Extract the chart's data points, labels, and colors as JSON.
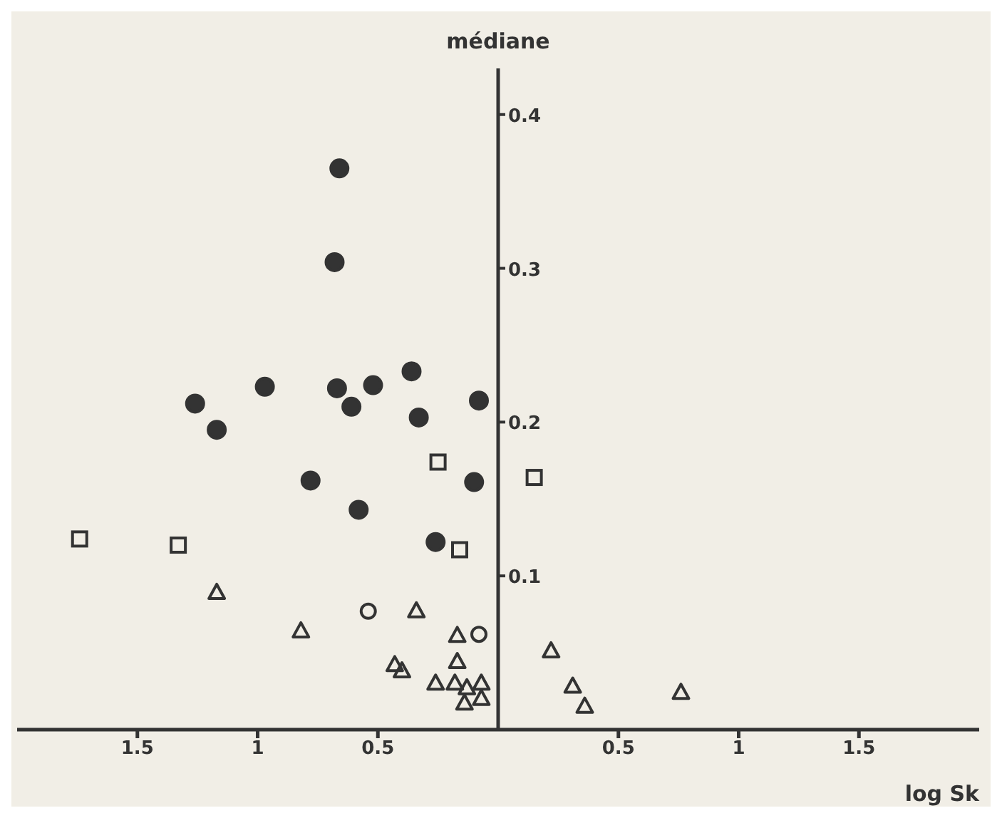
{
  "chart_data": {
    "type": "scatter",
    "xlabel": "log Sk",
    "ylabel": "médiane",
    "xlim": [
      -2,
      2
    ],
    "ylim": [
      0,
      0.43
    ],
    "xticks": [
      {
        "value": -1.5,
        "label": "1.5"
      },
      {
        "value": -1,
        "label": "1"
      },
      {
        "value": -0.5,
        "label": "0.5"
      },
      0.5,
      1,
      {
        "value": 1.5,
        "label": "1.5"
      }
    ],
    "yticks": [
      0.1,
      0.2,
      0.3,
      0.4
    ],
    "grid": false,
    "legend": false,
    "series": [
      {
        "color": "#333333",
        "marker": "circle",
        "x": [
          -0.66,
          -0.68,
          -0.36,
          -0.97,
          -0.67,
          -0.52,
          -1.26,
          -0.61,
          -0.08,
          -0.33,
          -1.17,
          -0.78,
          -0.1,
          -0.58,
          -0.26
        ],
        "values": [
          0.365,
          0.304,
          0.233,
          0.223,
          0.222,
          0.224,
          0.212,
          0.21,
          0.214,
          0.203,
          0.195,
          0.162,
          0.161,
          0.143,
          0.122
        ]
      },
      {
        "color": "#333333",
        "marker": "square",
        "x": [
          -1.74,
          -1.33,
          -0.25,
          -0.16,
          0.15
        ],
        "values": [
          0.124,
          0.12,
          0.174,
          0.117,
          0.164
        ]
      },
      {
        "color": "#333333",
        "marker": "circle",
        "x": [
          -0.54,
          -0.08
        ],
        "values": [
          0.077,
          0.062
        ]
      },
      {
        "color": "#333333",
        "marker": "triangle",
        "x": [
          -1.17,
          -0.82,
          -0.34,
          -0.17,
          -0.43,
          -0.4,
          -0.17,
          -0.26,
          -0.18,
          -0.13,
          -0.07,
          -0.14,
          -0.07,
          0.22,
          0.31,
          0.36,
          0.76
        ],
        "values": [
          0.089,
          0.064,
          0.077,
          0.061,
          0.042,
          0.038,
          0.044,
          0.03,
          0.03,
          0.027,
          0.03,
          0.017,
          0.02,
          0.051,
          0.028,
          0.015,
          0.024
        ]
      }
    ]
  }
}
